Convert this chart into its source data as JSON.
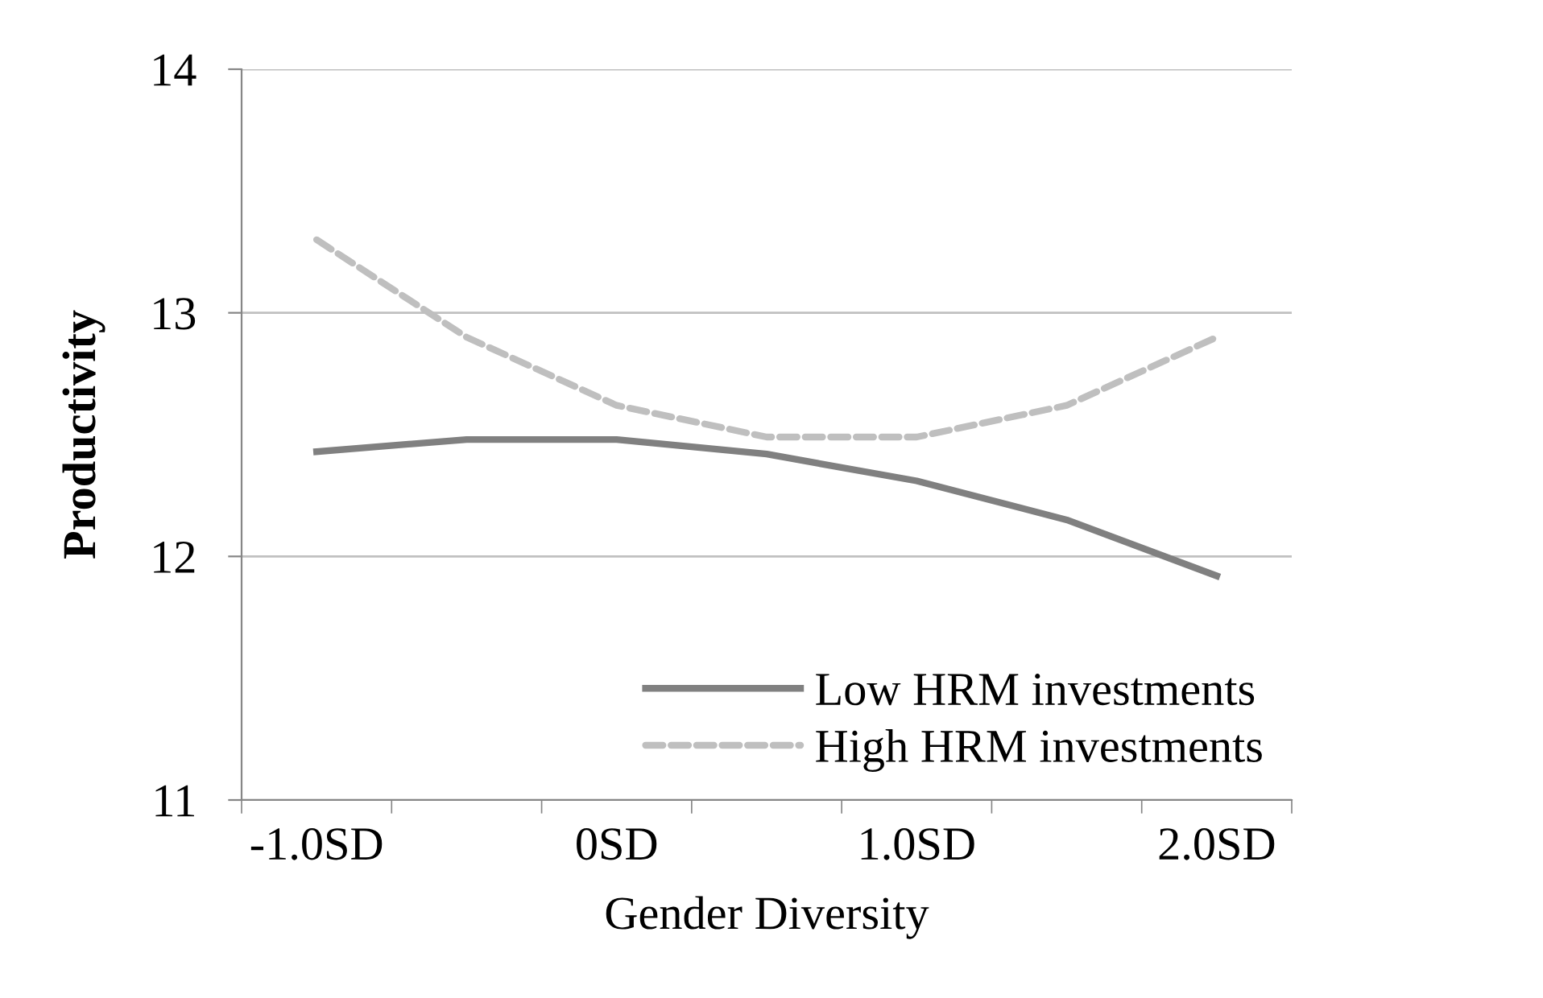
{
  "chart_data": {
    "type": "line",
    "xlabel": "Gender Diversity",
    "ylabel": "Productivity",
    "categories": [
      "-1.0SD",
      null,
      "0SD",
      null,
      "1.0SD",
      null,
      "2.0SD"
    ],
    "series": [
      {
        "name": "Low HRM investments",
        "color": "#808080",
        "line_style": "solid",
        "values": [
          12.43,
          12.48,
          12.48,
          12.42,
          12.31,
          12.15,
          11.92
        ]
      },
      {
        "name": "High HRM investments",
        "color": "#bfbfbf",
        "line_style": "dashed",
        "values": [
          13.3,
          12.9,
          12.62,
          12.49,
          12.49,
          12.62,
          12.9
        ]
      }
    ],
    "ylim": [
      11,
      14
    ],
    "yticks": [
      11,
      12,
      13,
      14
    ],
    "grid": "y",
    "legend": "bottom right",
    "marker": "none"
  }
}
